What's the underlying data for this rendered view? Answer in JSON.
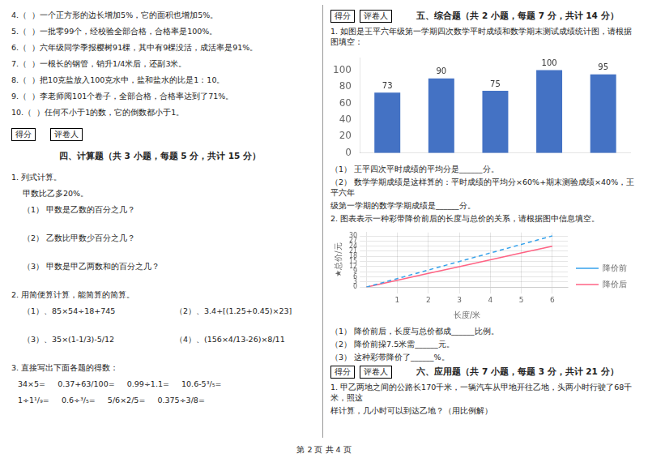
{
  "chart_data": [
    {
      "type": "bar",
      "categories": [
        null,
        null,
        null,
        null,
        null
      ],
      "values": [
        73,
        90,
        75,
        100,
        95
      ],
      "color": "#4472C4",
      "ylim": [
        0,
        115
      ],
      "yticks": [
        0,
        20,
        40,
        60,
        80,
        100
      ],
      "grid": false,
      "data_labels": true,
      "tick_labels": "y",
      "annotations": [
        "4.（  ）一个正方形的边长增加5%，它的面积也增加5%。",
        "5.（  ）一批零99个，经校验全部合格，合格率是100%。",
        "6.（  ）六年级同学季报樱树91棵，其中有9棵没活，成活率是91%。",
        "7.（  ）一根长的钢管，销升1/4米后，还副3米。",
        "8.（  ）把10克盐放入100克水中，盐和盐水的比是1：10。",
        "9.（  ）李老师阅101个卷子，全部合格，合格率达到了71%。",
        "10.（  ）任何不小于1的数，它的倒数都小于1。",
        "得分",
        "评卷人",
        "四、计算题（共 3 小题，每题 5 分，共计 15 分）",
        "1. 列式计算。",
        "甲数比乙多20%。",
        "（1） 甲数是乙数的百分之几？",
        "（2） 乙数比甲数少百分之几？",
        "（3） 甲数是甲乙两数和的百分之几？",
        "2. 用简便算计算，能简算的简算。",
        "（1）、85×54÷18+745",
        "（2）、3.4+[(1.25+0.45)×23]",
        "（3）、35×(1-1/3)-5/12",
        "（4）、(156×4/13-26)×8/11",
        "3. 直接写出下面各题的得数：",
        "34×5=     0.37+63/100=     0.99÷1.1=     10.6-5³/₅=",
        "1÷1¹/₉=     0.6÷³/₅=     5/6×2/5=     0.375÷3/8=",
        "得分",
        "评卷人",
        "五、综合题（共 2 小题，每题 7 分，共计 14 分）",
        "1. 如图是王平六年级第一学期四次数学平时成绩和数学期末测试成绩统计图，请根据图填空：",
        "（1） 王平四次平时成绩的平均分是______分。",
        "（2） 数学学期成绩是这样算的：平时成绩的平均分×60%+期末测验成绩×40%，王平六年",
        "级第一学期的数学学期成绩是______分。",
        "2. 图表表示一种彩带降价前后的长度与总价的关系，请根据图中信息填空。"
      ]
    },
    {
      "type": "line",
      "x": [
        0,
        1,
        2,
        3,
        4,
        5,
        6
      ],
      "series": [
        {
          "name": "降价前",
          "values": [
            0,
            5,
            10,
            15,
            20,
            25,
            30
          ],
          "line_style": "dashed",
          "marker": "none"
        },
        {
          "name": "降价后",
          "values": [
            0,
            4,
            8,
            12,
            16,
            20,
            24
          ],
          "line_style": "solid",
          "marker": "none"
        }
      ],
      "xlabel": "长度/米",
      "ylabel": "★总价/元",
      "xlim": [
        0,
        6.5
      ],
      "xticks": [
        1,
        2,
        3,
        4,
        5,
        6
      ],
      "ylim": [
        0,
        32
      ],
      "yticks": [
        0,
        3,
        6,
        9,
        12,
        15,
        18,
        21,
        24,
        27,
        30
      ],
      "grid": true,
      "legend": "right",
      "annotations": [
        "（1） 降价前后，长度与总价都成______比例。",
        "（2） 降价前挅7.5米需______元。",
        "（3） 这种彩带降价了______%。",
        "得分",
        "评卷人",
        "六、应用题（共 7 小题，每题 3 分，共计 21 分）",
        "1. 甲乙两地之间的公路长170千米，一辆汽车从甲地开往乙地，头两小时行驶了68千米，照这",
        "样计算，几小时可以到达乙地？（用比例解）",
        "第 2 页 共 4 页"
      ]
    }
  ]
}
